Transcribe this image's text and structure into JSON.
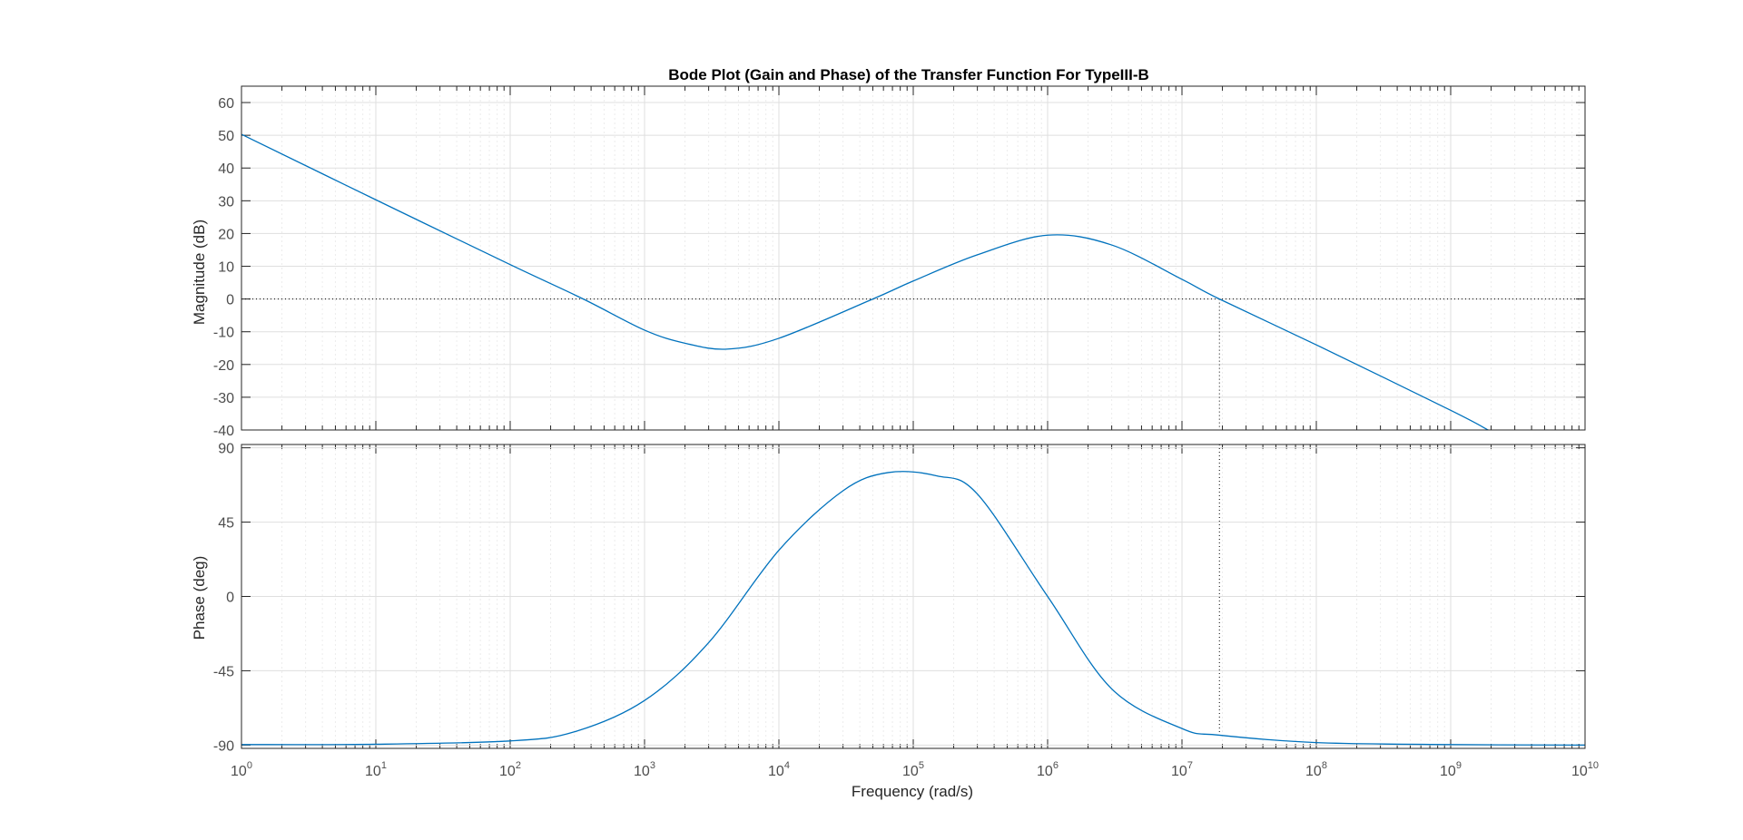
{
  "colors": {
    "trace": "#0072bd"
  },
  "chart_data": {
    "type": "line",
    "title": "Bode Plot (Gain and Phase) of the Transfer Function For TypeIII-B",
    "xlabel": "Frequency  (rad/s)",
    "x_scale": "log",
    "xlim": [
      1,
      10000000000
    ],
    "x_ticks": [
      {
        "base": "10",
        "exp": "0"
      },
      {
        "base": "10",
        "exp": "1"
      },
      {
        "base": "10",
        "exp": "2"
      },
      {
        "base": "10",
        "exp": "3"
      },
      {
        "base": "10",
        "exp": "4"
      },
      {
        "base": "10",
        "exp": "5"
      },
      {
        "base": "10",
        "exp": "6"
      },
      {
        "base": "10",
        "exp": "7"
      },
      {
        "base": "10",
        "exp": "8"
      },
      {
        "base": "10",
        "exp": "9"
      },
      {
        "base": "10",
        "exp": "10"
      }
    ],
    "grid": true,
    "crossover_frequency": 19000000,
    "magnitude": {
      "ylabel": "Magnitude (dB)",
      "ylim": [
        -40,
        65
      ],
      "yticks": [
        "60",
        "50",
        "40",
        "30",
        "20",
        "10",
        "0",
        "-10",
        "-20",
        "-30",
        "-40"
      ],
      "reference_line": 0,
      "x": [
        1,
        10,
        100,
        350,
        1000,
        2000,
        4100,
        10000,
        50000,
        100000,
        300000,
        1000000,
        3000000,
        10000000,
        19000000,
        100000000,
        1000000000,
        1900000000
      ],
      "y": [
        50.3,
        30.3,
        10.5,
        0,
        -9.5,
        -13.5,
        -15.3,
        -12,
        0,
        5.5,
        13.5,
        19.5,
        16.5,
        6,
        0,
        -14,
        -34,
        -40
      ]
    },
    "phase": {
      "ylabel": "Phase (deg)",
      "ylim": [
        -92,
        92
      ],
      "yticks": [
        "90",
        "45",
        "0",
        "-45",
        "-90"
      ],
      "x": [
        1,
        10,
        100,
        300,
        1000,
        3000,
        10000,
        30000,
        65000,
        150000,
        300000,
        1000000,
        3000000,
        10000000,
        19000000,
        100000000,
        1000000000,
        10000000000
      ],
      "y": [
        -89.7,
        -89.5,
        -87.5,
        -82,
        -63,
        -28,
        28,
        64,
        75,
        73,
        62,
        0,
        -56,
        -80,
        -84,
        -88.5,
        -89.7,
        -90
      ]
    }
  }
}
